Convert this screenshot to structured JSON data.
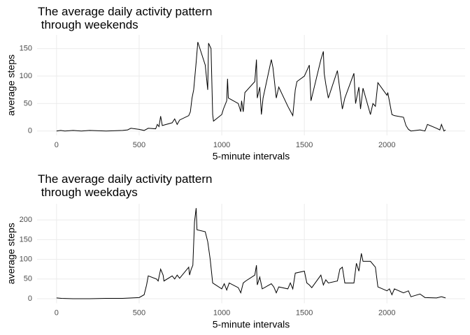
{
  "chart_data": [
    {
      "type": "line",
      "title": "The average daily activity pattern\n through weekends",
      "x_label": "5-minute intervals",
      "y_label": "average steps",
      "xlim": [
        -118,
        2473
      ],
      "ylim": [
        -8,
        175
      ],
      "xticks": [
        0,
        500,
        1000,
        1500,
        2000
      ],
      "yticks": [
        0,
        50,
        100,
        150
      ],
      "grid": true,
      "color": "#000000",
      "x": [
        0,
        25,
        50,
        100,
        150,
        200,
        300,
        400,
        430,
        450,
        500,
        530,
        555,
        600,
        610,
        620,
        630,
        640,
        700,
        715,
        730,
        745,
        800,
        810,
        820,
        830,
        845,
        855,
        900,
        915,
        920,
        935,
        945,
        950,
        1000,
        1010,
        1030,
        1035,
        1040,
        1100,
        1115,
        1120,
        1130,
        1140,
        1200,
        1210,
        1215,
        1230,
        1240,
        1250,
        1300,
        1310,
        1330,
        1345,
        1400,
        1430,
        1445,
        1455,
        1500,
        1530,
        1540,
        1600,
        1615,
        1620,
        1630,
        1645,
        1700,
        1715,
        1730,
        1745,
        1800,
        1810,
        1830,
        1840,
        1855,
        1900,
        1915,
        1930,
        1945,
        2000,
        2005,
        2030,
        2045,
        2100,
        2115,
        2130,
        2145,
        2200,
        2230,
        2245,
        2300,
        2320,
        2330,
        2345,
        2355
      ],
      "values": [
        0,
        1,
        0,
        1,
        0,
        1,
        0,
        1,
        2,
        5,
        3,
        1,
        5,
        4,
        12,
        8,
        27,
        10,
        15,
        22,
        12,
        20,
        28,
        35,
        60,
        75,
        125,
        162,
        120,
        75,
        160,
        150,
        30,
        18,
        30,
        40,
        55,
        95,
        60,
        50,
        35,
        55,
        35,
        70,
        90,
        130,
        60,
        80,
        30,
        60,
        130,
        115,
        60,
        80,
        45,
        28,
        75,
        90,
        100,
        120,
        55,
        130,
        145,
        105,
        85,
        60,
        110,
        75,
        40,
        60,
        105,
        50,
        80,
        40,
        78,
        30,
        50,
        45,
        88,
        65,
        70,
        30,
        28,
        25,
        10,
        3,
        0,
        2,
        0,
        12,
        5,
        2,
        12,
        0,
        2
      ]
    },
    {
      "type": "line",
      "title": "The average daily activity pattern\n through weekdays",
      "x_label": "5-minute intervals",
      "y_label": "average steps",
      "xlim": [
        -118,
        2473
      ],
      "ylim": [
        -11.5,
        241
      ],
      "xticks": [
        0,
        500,
        1000,
        1500,
        2000
      ],
      "yticks": [
        0,
        50,
        100,
        150,
        200
      ],
      "grid": true,
      "color": "#000000",
      "x": [
        0,
        30,
        100,
        200,
        300,
        400,
        500,
        530,
        545,
        555,
        605,
        615,
        630,
        645,
        650,
        700,
        715,
        730,
        745,
        800,
        805,
        815,
        825,
        835,
        845,
        850,
        900,
        915,
        930,
        945,
        1000,
        1015,
        1030,
        1045,
        1100,
        1115,
        1130,
        1145,
        1200,
        1210,
        1215,
        1230,
        1245,
        1300,
        1315,
        1330,
        1345,
        1400,
        1415,
        1430,
        1445,
        1500,
        1515,
        1530,
        1545,
        1600,
        1615,
        1630,
        1645,
        1700,
        1715,
        1730,
        1745,
        1800,
        1815,
        1830,
        1845,
        1855,
        1900,
        1930,
        1945,
        2000,
        2015,
        2030,
        2045,
        2100,
        2130,
        2145,
        2200,
        2230,
        2300,
        2330,
        2355
      ],
      "values": [
        2,
        1,
        0,
        0,
        1,
        1,
        3,
        10,
        35,
        58,
        50,
        45,
        75,
        60,
        45,
        58,
        50,
        60,
        52,
        80,
        60,
        75,
        85,
        195,
        230,
        175,
        170,
        145,
        100,
        40,
        25,
        38,
        22,
        40,
        28,
        15,
        40,
        45,
        60,
        85,
        35,
        55,
        25,
        38,
        30,
        15,
        30,
        25,
        40,
        25,
        65,
        70,
        40,
        35,
        28,
        60,
        35,
        48,
        40,
        45,
        75,
        80,
        40,
        40,
        90,
        70,
        115,
        95,
        95,
        80,
        30,
        20,
        25,
        10,
        25,
        15,
        20,
        5,
        12,
        3,
        2,
        5,
        2
      ]
    }
  ]
}
